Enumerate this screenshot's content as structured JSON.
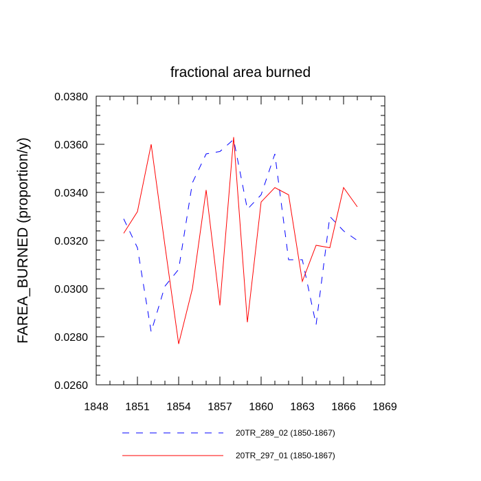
{
  "chart_data": {
    "type": "line",
    "title": "fractional area burned",
    "xlabel": "",
    "ylabel": "FAREA_BURNED  (proportion/y)",
    "xlim": [
      1848,
      1869
    ],
    "ylim": [
      0.026,
      0.038
    ],
    "x_ticks": [
      1848,
      1851,
      1854,
      1857,
      1860,
      1863,
      1866,
      1869
    ],
    "x_tick_labels": [
      "1848",
      "1851",
      "1854",
      "1857",
      "1860",
      "1863",
      "1866",
      "1869"
    ],
    "y_ticks": [
      0.026,
      0.028,
      0.03,
      0.032,
      0.034,
      0.036,
      0.038
    ],
    "y_tick_labels": [
      "0.0260",
      "0.0280",
      "0.0300",
      "0.0320",
      "0.0340",
      "0.0360",
      "0.0380"
    ],
    "grid": false,
    "legend_position": "bottom",
    "series": [
      {
        "name": "20TR_289_02 (1850-1867)",
        "color": "#0000ff",
        "style": "dashed",
        "x": [
          1850,
          1851,
          1852,
          1853,
          1854,
          1855,
          1856,
          1857,
          1858,
          1859,
          1860,
          1861,
          1862,
          1863,
          1864,
          1865,
          1866,
          1867
        ],
        "y": [
          0.0329,
          0.0317,
          0.0282,
          0.0301,
          0.0308,
          0.0344,
          0.0356,
          0.0357,
          0.0362,
          0.0333,
          0.0339,
          0.0356,
          0.0312,
          0.0312,
          0.0285,
          0.033,
          0.0324,
          0.032
        ]
      },
      {
        "name": "20TR_297_01 (1850-1867)",
        "color": "#ff0000",
        "style": "solid",
        "x": [
          1850,
          1851,
          1852,
          1853,
          1854,
          1855,
          1856,
          1857,
          1858,
          1859,
          1860,
          1861,
          1862,
          1863,
          1864,
          1865,
          1866,
          1867
        ],
        "y": [
          0.0323,
          0.0332,
          0.036,
          0.0318,
          0.0277,
          0.03,
          0.0341,
          0.0293,
          0.0363,
          0.0286,
          0.0336,
          0.0342,
          0.0339,
          0.0303,
          0.0318,
          0.0317,
          0.0342,
          0.0334
        ]
      }
    ]
  }
}
